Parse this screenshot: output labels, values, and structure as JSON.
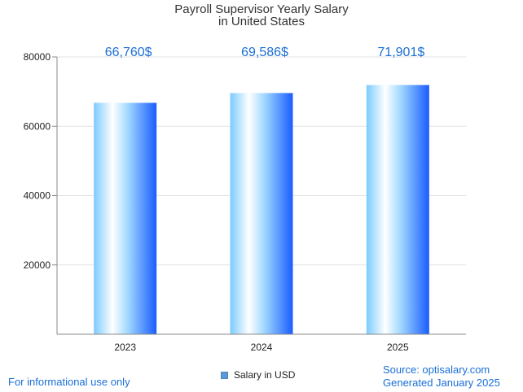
{
  "chart_data": {
    "type": "bar",
    "title_line1": "Payroll Supervisor Yearly Salary",
    "title_line2": "in United States",
    "categories": [
      "2023",
      "2024",
      "2025"
    ],
    "values": [
      66760,
      69586,
      71901
    ],
    "data_labels": [
      "66,760$",
      "69,586$",
      "71,901$"
    ],
    "y_ticks": [
      20000,
      40000,
      60000,
      80000
    ],
    "y_tick_labels": [
      "20000",
      "40000",
      "60000",
      "80000"
    ],
    "ylim": [
      0,
      80000
    ],
    "legend": "Salary in USD",
    "grid": true
  },
  "footer": {
    "note": "For informational use only",
    "source": "Source: optisalary.com",
    "generated": "Generated January 2025"
  },
  "colors": {
    "bar_light": "#e8f6ff",
    "bar_mid": "#8ed0ff",
    "bar_dark": "#1a5cff",
    "label_blue": "#1a6fd6",
    "grid": "#e3e3e3",
    "axis": "#888888"
  }
}
